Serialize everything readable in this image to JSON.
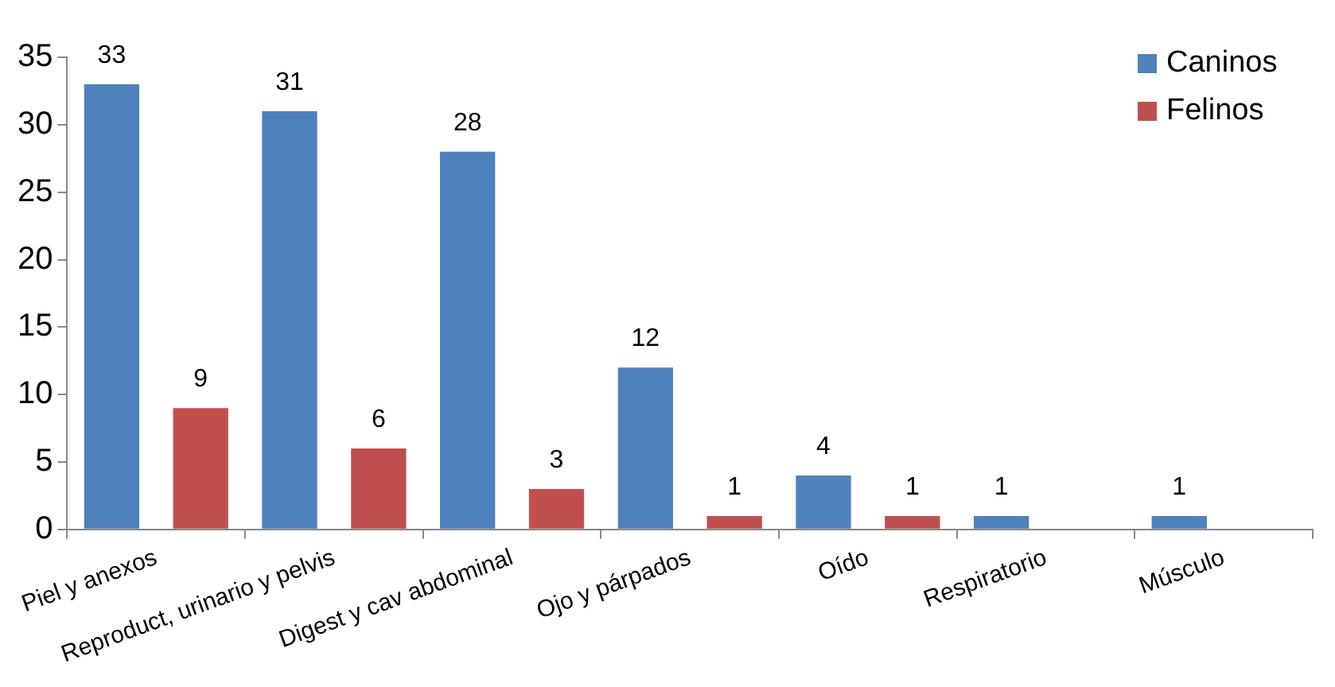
{
  "chart_data": {
    "type": "bar",
    "categories": [
      "Piel y anexos",
      "Reproduct, urinario y pelvis",
      "Digest y cav abdominal",
      "Ojo y párpados",
      "Oído",
      "Respiratorio",
      "Músculo"
    ],
    "series": [
      {
        "name": "Caninos",
        "color": "#4f81bd",
        "values": [
          33,
          31,
          28,
          12,
          4,
          1,
          1
        ]
      },
      {
        "name": "Felinos",
        "color": "#c0504d",
        "values": [
          9,
          6,
          3,
          1,
          1,
          null,
          null
        ]
      }
    ],
    "ylim": [
      0,
      35
    ],
    "yticks": [
      0,
      5,
      10,
      15,
      20,
      25,
      30,
      35
    ],
    "grid": false,
    "legend": "top right",
    "data_labels": true
  }
}
